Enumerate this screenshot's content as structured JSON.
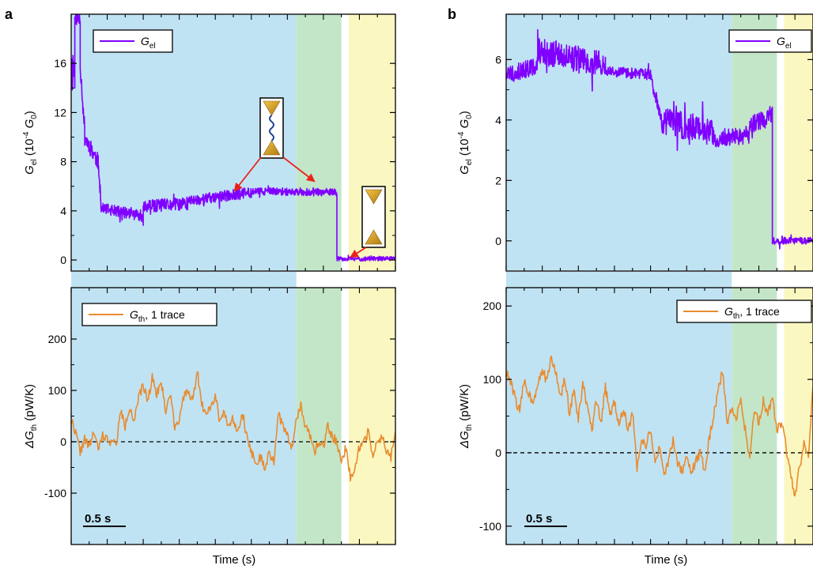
{
  "figure": {
    "panel_a_letter": "a",
    "panel_b_letter": "b",
    "xlabel": "Time (s)",
    "scalebar_label": "0.5 s"
  },
  "chart_data": [
    {
      "id": "a_top",
      "type": "line",
      "series": [
        {
          "name_main": "G",
          "name_sub": "el",
          "color": "#8000ff"
        }
      ],
      "ylabel": {
        "main": "G",
        "sub": "el",
        "paren": " (10",
        "sup": "-4",
        "unit": " G",
        "unit_sub": "0",
        "close": ")"
      },
      "ylim": [
        -0.9,
        20
      ],
      "yticks": [
        0,
        4,
        8,
        12,
        16
      ],
      "xlim": [
        0,
        3.6
      ],
      "regions": [
        {
          "from": 0,
          "to": 2.5,
          "color": "#c0e3f3"
        },
        {
          "from": 2.5,
          "to": 3.0,
          "color": "#c3e6c8"
        },
        {
          "from": 3.08,
          "to": 3.6,
          "color": "#faf7c0"
        }
      ],
      "segments": [
        {
          "t0": 0.0,
          "t1": 0.04,
          "v0": 15.5,
          "v1": 15.5,
          "noise": 2.0
        },
        {
          "t0": 0.04,
          "t1": 0.1,
          "v0": 19.8,
          "v1": 19.5,
          "noise": 0.6
        },
        {
          "t0": 0.1,
          "t1": 0.15,
          "v0": 16.0,
          "v1": 10.5,
          "noise": 0.8
        },
        {
          "t0": 0.15,
          "t1": 0.3,
          "v0": 10.0,
          "v1": 8.0,
          "noise": 0.7
        },
        {
          "t0": 0.3,
          "t1": 0.33,
          "v0": 7.5,
          "v1": 5.0,
          "noise": 0.5
        },
        {
          "t0": 0.33,
          "t1": 0.8,
          "v0": 4.2,
          "v1": 3.6,
          "noise": 0.45
        },
        {
          "t0": 0.8,
          "t1": 1.3,
          "v0": 4.3,
          "v1": 4.6,
          "noise": 0.55
        },
        {
          "t0": 1.3,
          "t1": 2.0,
          "v0": 4.8,
          "v1": 5.5,
          "noise": 0.45
        },
        {
          "t0": 2.0,
          "t1": 2.95,
          "v0": 5.6,
          "v1": 5.5,
          "noise": 0.3
        },
        {
          "t0": 2.95,
          "t1": 3.6,
          "v0": 0.1,
          "v1": 0.1,
          "noise": 0.18
        }
      ]
    },
    {
      "id": "a_bottom",
      "type": "line",
      "series": [
        {
          "name_main": "G",
          "name_sub": "th",
          "name_rest": ", 1 trace",
          "color": "#e88c30"
        }
      ],
      "ylabel": {
        "main": "ΔG",
        "sub": "th",
        "paren": " (pW/K)"
      },
      "ylim": [
        -200,
        300
      ],
      "yticks": [
        -100,
        0,
        100,
        200
      ],
      "xlim": [
        0,
        3.6
      ],
      "points": [
        [
          0,
          45
        ],
        [
          0.05,
          18
        ],
        [
          0.1,
          -20
        ],
        [
          0.15,
          5
        ],
        [
          0.2,
          -10
        ],
        [
          0.25,
          20
        ],
        [
          0.3,
          -15
        ],
        [
          0.35,
          12
        ],
        [
          0.4,
          5
        ],
        [
          0.45,
          0
        ],
        [
          0.5,
          -5
        ],
        [
          0.55,
          60
        ],
        [
          0.6,
          30
        ],
        [
          0.65,
          70
        ],
        [
          0.7,
          40
        ],
        [
          0.75,
          85
        ],
        [
          0.8,
          110
        ],
        [
          0.85,
          80
        ],
        [
          0.9,
          125
        ],
        [
          0.95,
          95
        ],
        [
          1.0,
          115
        ],
        [
          1.05,
          60
        ],
        [
          1.1,
          95
        ],
        [
          1.15,
          30
        ],
        [
          1.2,
          45
        ],
        [
          1.25,
          85
        ],
        [
          1.3,
          100
        ],
        [
          1.35,
          80
        ],
        [
          1.4,
          140
        ],
        [
          1.45,
          70
        ],
        [
          1.5,
          60
        ],
        [
          1.55,
          70
        ],
        [
          1.6,
          90
        ],
        [
          1.65,
          40
        ],
        [
          1.7,
          60
        ],
        [
          1.75,
          30
        ],
        [
          1.8,
          45
        ],
        [
          1.85,
          20
        ],
        [
          1.9,
          60
        ],
        [
          1.95,
          10
        ],
        [
          2.0,
          -20
        ],
        [
          2.05,
          -40
        ],
        [
          2.1,
          -30
        ],
        [
          2.15,
          -55
        ],
        [
          2.2,
          -20
        ],
        [
          2.25,
          -40
        ],
        [
          2.3,
          55
        ],
        [
          2.35,
          30
        ],
        [
          2.4,
          10
        ],
        [
          2.45,
          -10
        ],
        [
          2.5,
          45
        ],
        [
          2.55,
          70
        ],
        [
          2.6,
          30
        ],
        [
          2.65,
          10
        ],
        [
          2.7,
          -20
        ],
        [
          2.75,
          0
        ],
        [
          2.8,
          -10
        ],
        [
          2.85,
          30
        ],
        [
          2.9,
          10
        ],
        [
          2.95,
          0
        ],
        [
          3.0,
          -40
        ],
        [
          3.05,
          -10
        ],
        [
          3.1,
          -70
        ],
        [
          3.15,
          -50
        ],
        [
          3.2,
          -10
        ],
        [
          3.25,
          0
        ],
        [
          3.3,
          20
        ],
        [
          3.35,
          -30
        ],
        [
          3.4,
          0
        ],
        [
          3.45,
          10
        ],
        [
          3.5,
          -20
        ],
        [
          3.55,
          -30
        ],
        [
          3.6,
          20
        ]
      ],
      "noise": 9,
      "zero_line": true,
      "regions": [
        {
          "from": 0,
          "to": 2.5,
          "color": "#c0e3f3"
        },
        {
          "from": 2.5,
          "to": 3.0,
          "color": "#c3e6c8"
        },
        {
          "from": 3.08,
          "to": 3.6,
          "color": "#faf7c0"
        }
      ]
    },
    {
      "id": "b_top",
      "type": "line",
      "series": [
        {
          "name_main": "G",
          "name_sub": "el",
          "color": "#8000ff"
        }
      ],
      "ylabel": {
        "main": "G",
        "sub": "el",
        "paren": " (10",
        "sup": "-4",
        "unit": " G",
        "unit_sub": "0",
        "close": ")"
      },
      "ylim": [
        -1.0,
        7.5
      ],
      "yticks": [
        0,
        2,
        4,
        6
      ],
      "xlim": [
        0,
        3.4
      ],
      "regions": [
        {
          "from": 0,
          "to": 2.5,
          "color": "#c0e3f3"
        },
        {
          "from": 2.5,
          "to": 3.0,
          "color": "#c3e6c8"
        },
        {
          "from": 3.08,
          "to": 3.4,
          "color": "#faf7c0"
        }
      ],
      "segments": [
        {
          "t0": 0.0,
          "t1": 0.35,
          "v0": 5.5,
          "v1": 5.8,
          "noise": 0.3
        },
        {
          "t0": 0.35,
          "t1": 1.1,
          "v0": 6.3,
          "v1": 5.8,
          "noise": 0.45
        },
        {
          "t0": 1.1,
          "t1": 1.6,
          "v0": 5.6,
          "v1": 5.5,
          "noise": 0.18
        },
        {
          "t0": 1.6,
          "t1": 1.7,
          "v0": 5.4,
          "v1": 4.3,
          "noise": 0.25
        },
        {
          "t0": 1.7,
          "t1": 2.3,
          "v0": 4.0,
          "v1": 3.6,
          "noise": 0.45
        },
        {
          "t0": 2.3,
          "t1": 2.7,
          "v0": 3.4,
          "v1": 3.5,
          "noise": 0.3
        },
        {
          "t0": 2.7,
          "t1": 2.95,
          "v0": 3.8,
          "v1": 4.2,
          "noise": 0.3
        },
        {
          "t0": 2.95,
          "t1": 3.4,
          "v0": 0.0,
          "v1": 0.0,
          "noise": 0.12
        }
      ]
    },
    {
      "id": "b_bottom",
      "type": "line",
      "series": [
        {
          "name_main": "G",
          "name_sub": "th",
          "name_rest": ", 1 trace",
          "color": "#e88c30"
        }
      ],
      "ylabel": {
        "main": "ΔG",
        "sub": "th",
        "paren": " (pW/K)"
      },
      "ylim": [
        -125,
        225
      ],
      "yticks": [
        -100,
        0,
        100,
        200
      ],
      "xlim": [
        0,
        3.4
      ],
      "points": [
        [
          0,
          110
        ],
        [
          0.05,
          95
        ],
        [
          0.1,
          75
        ],
        [
          0.15,
          55
        ],
        [
          0.2,
          100
        ],
        [
          0.25,
          80
        ],
        [
          0.3,
          70
        ],
        [
          0.35,
          95
        ],
        [
          0.4,
          115
        ],
        [
          0.45,
          95
        ],
        [
          0.5,
          130
        ],
        [
          0.55,
          110
        ],
        [
          0.6,
          75
        ],
        [
          0.65,
          100
        ],
        [
          0.7,
          55
        ],
        [
          0.75,
          85
        ],
        [
          0.8,
          45
        ],
        [
          0.85,
          95
        ],
        [
          0.9,
          60
        ],
        [
          0.95,
          30
        ],
        [
          1.0,
          70
        ],
        [
          1.05,
          40
        ],
        [
          1.1,
          90
        ],
        [
          1.15,
          50
        ],
        [
          1.2,
          70
        ],
        [
          1.25,
          40
        ],
        [
          1.3,
          60
        ],
        [
          1.35,
          30
        ],
        [
          1.4,
          55
        ],
        [
          1.45,
          -20
        ],
        [
          1.5,
          20
        ],
        [
          1.55,
          10
        ],
        [
          1.6,
          30
        ],
        [
          1.65,
          -10
        ],
        [
          1.7,
          5
        ],
        [
          1.75,
          -35
        ],
        [
          1.8,
          -10
        ],
        [
          1.85,
          20
        ],
        [
          1.9,
          -15
        ],
        [
          1.95,
          -25
        ],
        [
          2.0,
          -5
        ],
        [
          2.05,
          -30
        ],
        [
          2.1,
          -10
        ],
        [
          2.15,
          0
        ],
        [
          2.2,
          -25
        ],
        [
          2.25,
          20
        ],
        [
          2.3,
          50
        ],
        [
          2.35,
          90
        ],
        [
          2.4,
          110
        ],
        [
          2.45,
          40
        ],
        [
          2.5,
          60
        ],
        [
          2.55,
          50
        ],
        [
          2.6,
          70
        ],
        [
          2.65,
          30
        ],
        [
          2.7,
          -5
        ],
        [
          2.75,
          60
        ],
        [
          2.8,
          40
        ],
        [
          2.85,
          70
        ],
        [
          2.9,
          55
        ],
        [
          2.95,
          75
        ],
        [
          3.0,
          30
        ],
        [
          3.05,
          40
        ],
        [
          3.1,
          10
        ],
        [
          3.15,
          -30
        ],
        [
          3.2,
          -60
        ],
        [
          3.25,
          -20
        ],
        [
          3.3,
          10
        ],
        [
          3.35,
          -10
        ],
        [
          3.4,
          90
        ]
      ],
      "noise": 7,
      "zero_line": true,
      "regions": [
        {
          "from": 0,
          "to": 2.5,
          "color": "#c0e3f3"
        },
        {
          "from": 2.5,
          "to": 3.0,
          "color": "#c3e6c8"
        },
        {
          "from": 3.08,
          "to": 3.4,
          "color": "#faf7c0"
        }
      ]
    }
  ]
}
